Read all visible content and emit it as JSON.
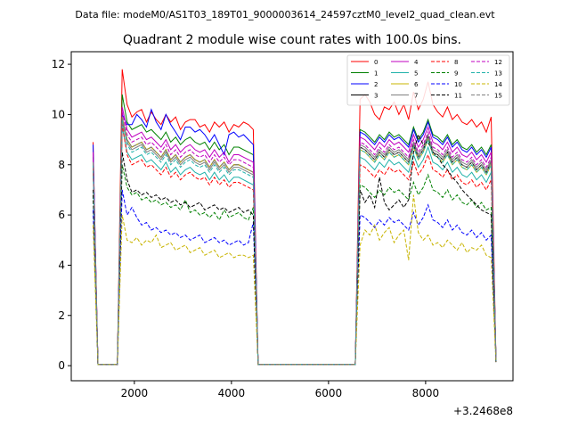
{
  "figure": {
    "suptitle": "Data file: modeM0/AS1T03_189T01_9000003614_24597cztM0_level2_quad_clean.evt"
  },
  "chart_data": {
    "type": "line",
    "title": "Quadrant 2 module wise count rates with 100.0s bins.",
    "xlabel": "",
    "ylabel": "",
    "x_offset_label": "+3.2468e8",
    "xlim": [
      700,
      9800
    ],
    "ylim": [
      -0.6,
      12.5
    ],
    "xticks": [
      2000,
      4000,
      6000,
      8000
    ],
    "yticks": [
      0,
      2,
      4,
      6,
      8,
      10,
      12
    ],
    "grid": false,
    "legend": {
      "position": "top-right",
      "ncol": 4
    },
    "x": [
      1150,
      1250,
      1550,
      1650,
      1750,
      1850,
      1950,
      2050,
      2150,
      2250,
      2350,
      2450,
      2550,
      2650,
      2750,
      2850,
      2950,
      3050,
      3150,
      3250,
      3350,
      3450,
      3550,
      3650,
      3750,
      3850,
      3950,
      4050,
      4150,
      4250,
      4350,
      4450,
      4550,
      6550,
      6650,
      6750,
      6850,
      6950,
      7050,
      7150,
      7250,
      7350,
      7450,
      7550,
      7650,
      7750,
      7850,
      7950,
      8050,
      8150,
      8250,
      8350,
      8450,
      8550,
      8650,
      8750,
      8850,
      8950,
      9050,
      9150,
      9250,
      9350,
      9450
    ],
    "series": [
      {
        "name": "0",
        "color": "#ff0000",
        "dash": "solid",
        "values": [
          8.9,
          0.05,
          0.05,
          0.05,
          11.8,
          10.4,
          9.9,
          10.1,
          10.2,
          9.7,
          10.1,
          9.8,
          9.6,
          10.0,
          9.7,
          9.9,
          9.4,
          9.7,
          9.8,
          9.8,
          9.5,
          9.6,
          9.3,
          9.7,
          9.5,
          9.7,
          9.3,
          9.6,
          9.5,
          9.7,
          9.6,
          9.4,
          0.05,
          0.05,
          10.6,
          10.8,
          10.5,
          10.0,
          9.8,
          10.3,
          10.2,
          10.5,
          10.0,
          10.4,
          9.8,
          10.9,
          10.2,
          10.6,
          11.3,
          10.4,
          10.1,
          9.9,
          10.3,
          9.8,
          10.0,
          9.7,
          9.6,
          9.8,
          9.5,
          9.7,
          9.3,
          9.9,
          0.25
        ]
      },
      {
        "name": "1",
        "color": "#008000",
        "dash": "solid",
        "values": [
          8.3,
          0.05,
          0.05,
          0.05,
          10.8,
          9.7,
          9.4,
          9.5,
          9.6,
          9.3,
          9.4,
          9.2,
          9.0,
          9.3,
          8.9,
          9.1,
          8.8,
          9.0,
          9.1,
          8.9,
          8.8,
          8.9,
          8.6,
          8.9,
          8.6,
          8.8,
          8.4,
          8.7,
          8.7,
          8.6,
          8.5,
          8.4,
          0.05,
          0.05,
          9.4,
          9.3,
          9.1,
          8.9,
          9.2,
          9.0,
          9.3,
          9.1,
          9.2,
          9.0,
          8.8,
          9.5,
          9.0,
          9.3,
          9.8,
          9.2,
          9.1,
          8.9,
          9.2,
          8.8,
          9.0,
          8.7,
          8.6,
          8.8,
          8.5,
          8.7,
          8.4,
          8.8,
          0.22
        ]
      },
      {
        "name": "2",
        "color": "#0000ff",
        "dash": "solid",
        "values": [
          8.8,
          0.05,
          0.05,
          0.05,
          10.0,
          9.6,
          9.6,
          10.0,
          9.8,
          9.5,
          10.2,
          9.7,
          9.4,
          10.0,
          9.6,
          9.3,
          9.0,
          9.5,
          9.5,
          9.3,
          9.4,
          9.2,
          8.9,
          9.2,
          8.8,
          8.4,
          9.2,
          9.3,
          9.1,
          9.2,
          9.0,
          8.8,
          0.05,
          0.05,
          9.3,
          9.2,
          9.0,
          8.8,
          9.1,
          8.9,
          9.2,
          9.0,
          9.1,
          8.9,
          8.7,
          9.4,
          8.9,
          9.2,
          9.7,
          9.1,
          9.0,
          8.8,
          9.1,
          8.7,
          8.9,
          8.6,
          8.5,
          8.7,
          8.4,
          8.6,
          8.3,
          8.7,
          0.22
        ]
      },
      {
        "name": "3",
        "color": "#000000",
        "dash": "solid",
        "values": [
          8.0,
          0.05,
          0.05,
          0.05,
          9.8,
          9.0,
          8.7,
          8.8,
          8.9,
          8.6,
          8.7,
          8.5,
          8.3,
          8.6,
          8.2,
          8.4,
          8.1,
          8.3,
          8.4,
          8.2,
          8.1,
          8.2,
          7.9,
          8.2,
          7.9,
          8.1,
          7.8,
          8.0,
          8.0,
          7.9,
          7.8,
          7.7,
          0.05,
          0.05,
          8.7,
          8.6,
          8.4,
          8.2,
          8.5,
          8.3,
          8.6,
          8.4,
          8.5,
          8.3,
          8.1,
          8.8,
          8.3,
          8.6,
          9.1,
          8.5,
          8.4,
          8.2,
          8.5,
          8.1,
          8.3,
          8.0,
          7.9,
          8.1,
          7.8,
          8.0,
          7.7,
          8.1,
          0.2
        ]
      },
      {
        "name": "4",
        "color": "#c000c0",
        "dash": "solid",
        "values": [
          8.5,
          0.05,
          0.05,
          0.05,
          10.3,
          9.4,
          9.1,
          9.2,
          9.3,
          9.0,
          9.1,
          8.9,
          8.7,
          9.0,
          8.6,
          8.8,
          8.5,
          8.7,
          8.8,
          8.6,
          8.5,
          8.6,
          8.3,
          8.6,
          8.3,
          8.5,
          8.1,
          8.4,
          8.4,
          8.3,
          8.2,
          8.1,
          0.05,
          0.05,
          9.1,
          9.0,
          8.8,
          8.6,
          8.9,
          8.7,
          9.0,
          8.8,
          8.9,
          8.7,
          8.5,
          9.2,
          8.7,
          9.0,
          9.5,
          8.9,
          8.8,
          8.6,
          8.9,
          8.5,
          8.7,
          8.4,
          8.3,
          8.5,
          8.2,
          8.4,
          8.1,
          8.5,
          0.21
        ]
      },
      {
        "name": "5",
        "color": "#20b2aa",
        "dash": "solid",
        "values": [
          7.8,
          0.05,
          0.05,
          0.05,
          9.5,
          8.5,
          8.2,
          8.3,
          8.4,
          8.1,
          8.2,
          8.0,
          7.8,
          8.1,
          7.7,
          7.9,
          7.6,
          7.8,
          7.9,
          7.7,
          7.6,
          7.7,
          7.4,
          7.7,
          7.4,
          7.6,
          7.3,
          7.5,
          7.5,
          7.4,
          7.3,
          7.2,
          0.05,
          0.05,
          8.3,
          8.2,
          8.0,
          7.8,
          8.1,
          7.9,
          8.2,
          8.0,
          8.1,
          7.9,
          7.7,
          8.4,
          7.9,
          8.2,
          8.7,
          8.1,
          8.0,
          7.8,
          8.1,
          7.7,
          7.9,
          7.6,
          7.5,
          7.7,
          7.4,
          7.6,
          7.3,
          7.7,
          0.19
        ]
      },
      {
        "name": "6",
        "color": "#c8b400",
        "dash": "solid",
        "values": [
          8.1,
          0.05,
          0.05,
          0.05,
          9.9,
          9.0,
          8.7,
          8.8,
          8.9,
          8.6,
          8.7,
          8.5,
          8.3,
          8.6,
          8.2,
          8.4,
          8.1,
          8.3,
          8.4,
          8.2,
          8.1,
          8.2,
          7.9,
          8.2,
          7.9,
          8.1,
          7.8,
          8.0,
          8.0,
          7.9,
          7.8,
          7.7,
          0.05,
          0.05,
          8.6,
          8.5,
          8.3,
          8.1,
          8.4,
          8.2,
          8.5,
          8.3,
          8.4,
          8.2,
          8.0,
          8.7,
          8.2,
          8.5,
          9.0,
          8.4,
          8.3,
          8.1,
          8.4,
          8.0,
          8.2,
          7.9,
          7.8,
          8.0,
          7.7,
          7.9,
          7.6,
          8.0,
          0.2
        ]
      },
      {
        "name": "7",
        "color": "#808080",
        "dash": "solid",
        "values": [
          8.2,
          0.05,
          0.05,
          0.05,
          9.7,
          8.9,
          8.6,
          8.7,
          8.8,
          8.5,
          8.6,
          8.4,
          8.2,
          8.5,
          8.1,
          8.3,
          8.0,
          8.2,
          8.3,
          8.1,
          8.0,
          8.1,
          7.8,
          8.1,
          7.8,
          8.0,
          7.7,
          7.9,
          7.9,
          7.8,
          7.7,
          7.6,
          0.05,
          0.05,
          8.8,
          8.7,
          8.5,
          8.3,
          8.6,
          8.4,
          8.7,
          8.5,
          8.6,
          8.4,
          8.2,
          8.9,
          8.4,
          8.7,
          9.2,
          8.6,
          8.5,
          8.3,
          8.6,
          8.2,
          8.4,
          8.1,
          8.0,
          8.2,
          7.9,
          8.1,
          7.8,
          8.2,
          0.2
        ]
      },
      {
        "name": "8",
        "color": "#ff0000",
        "dash": "dashed",
        "values": [
          7.9,
          0.05,
          0.05,
          0.05,
          9.6,
          8.4,
          8.0,
          8.1,
          8.2,
          7.9,
          8.0,
          7.8,
          7.6,
          7.9,
          7.5,
          7.7,
          7.4,
          7.6,
          7.7,
          7.5,
          7.4,
          7.5,
          7.2,
          7.5,
          7.2,
          7.4,
          7.1,
          7.3,
          7.3,
          7.2,
          7.1,
          7.0,
          0.05,
          0.05,
          8.0,
          7.9,
          7.7,
          7.5,
          7.8,
          7.6,
          7.9,
          7.7,
          7.8,
          7.6,
          7.4,
          8.1,
          7.6,
          7.9,
          8.4,
          7.8,
          7.7,
          7.5,
          7.8,
          7.4,
          7.6,
          7.3,
          7.2,
          7.4,
          7.1,
          7.3,
          7.0,
          7.4,
          0.18
        ]
      },
      {
        "name": "9",
        "color": "#008000",
        "dash": "dashed",
        "values": [
          6.8,
          0.05,
          0.05,
          0.05,
          8.0,
          7.1,
          6.8,
          6.9,
          6.6,
          6.7,
          6.5,
          6.6,
          6.4,
          6.5,
          6.3,
          6.4,
          6.2,
          6.6,
          6.1,
          6.2,
          6.0,
          6.1,
          5.9,
          6.1,
          5.8,
          6.2,
          5.9,
          6.0,
          6.1,
          5.9,
          5.8,
          6.3,
          0.05,
          0.05,
          7.2,
          7.1,
          6.9,
          6.7,
          7.0,
          6.8,
          7.1,
          6.9,
          7.0,
          6.8,
          6.6,
          7.3,
          6.8,
          7.1,
          7.6,
          7.0,
          6.9,
          6.7,
          7.0,
          6.6,
          6.8,
          6.5,
          6.4,
          6.6,
          6.3,
          6.5,
          6.2,
          6.3,
          0.16
        ]
      },
      {
        "name": "10",
        "color": "#0000ff",
        "dash": "dashed",
        "values": [
          6.2,
          0.05,
          0.05,
          0.05,
          7.0,
          6.0,
          6.3,
          5.9,
          5.6,
          5.7,
          5.4,
          5.5,
          5.3,
          5.4,
          5.2,
          5.3,
          5.1,
          5.2,
          5.0,
          5.1,
          5.2,
          4.9,
          5.0,
          5.1,
          4.9,
          5.0,
          4.8,
          4.9,
          5.0,
          4.8,
          4.9,
          5.7,
          0.05,
          0.05,
          6.0,
          5.9,
          5.7,
          5.5,
          5.8,
          5.6,
          5.9,
          5.7,
          5.8,
          5.6,
          5.4,
          6.1,
          5.6,
          5.9,
          6.4,
          5.8,
          5.7,
          5.5,
          5.8,
          5.4,
          5.6,
          5.3,
          5.2,
          5.4,
          5.1,
          5.3,
          5.0,
          5.2,
          0.14
        ]
      },
      {
        "name": "11",
        "color": "#000000",
        "dash": "dashed",
        "values": [
          7.0,
          0.05,
          0.05,
          0.05,
          8.5,
          7.4,
          6.9,
          7.0,
          6.8,
          6.9,
          6.7,
          6.8,
          6.6,
          6.7,
          6.5,
          6.6,
          6.4,
          6.5,
          6.3,
          6.4,
          6.5,
          6.2,
          6.3,
          6.4,
          6.2,
          6.3,
          6.1,
          6.2,
          6.3,
          6.1,
          6.2,
          6.0,
          0.05,
          0.05,
          7.0,
          6.5,
          6.8,
          6.3,
          7.5,
          6.5,
          6.2,
          6.4,
          6.6,
          6.3,
          6.6,
          8.5,
          9.2,
          8.8,
          8.9,
          8.5,
          8.3,
          8.0,
          7.8,
          7.5,
          7.3,
          7.0,
          6.8,
          6.6,
          6.4,
          6.2,
          6.1,
          6.0,
          0.15
        ]
      },
      {
        "name": "12",
        "color": "#c000c0",
        "dash": "dashed",
        "values": [
          8.2,
          0.05,
          0.05,
          0.05,
          10.1,
          9.2,
          8.9,
          9.0,
          9.1,
          8.8,
          8.9,
          8.7,
          8.5,
          8.8,
          8.4,
          8.6,
          8.3,
          8.5,
          8.6,
          8.4,
          8.3,
          8.4,
          8.1,
          8.4,
          8.1,
          8.3,
          8.0,
          8.2,
          8.2,
          8.1,
          8.0,
          7.9,
          0.05,
          0.05,
          8.9,
          8.8,
          8.6,
          8.4,
          8.7,
          8.5,
          8.8,
          8.6,
          8.7,
          8.5,
          8.3,
          9.0,
          8.5,
          8.8,
          9.3,
          8.7,
          8.6,
          8.4,
          8.7,
          8.3,
          8.5,
          8.2,
          8.1,
          8.3,
          8.0,
          8.2,
          7.9,
          8.3,
          0.2
        ]
      },
      {
        "name": "13",
        "color": "#20b2aa",
        "dash": "dashed",
        "values": [
          8.0,
          0.05,
          0.05,
          0.05,
          9.8,
          8.8,
          8.5,
          8.6,
          8.7,
          8.4,
          8.5,
          8.3,
          8.1,
          8.4,
          8.0,
          8.2,
          7.9,
          8.1,
          8.2,
          8.0,
          7.9,
          8.0,
          7.7,
          8.0,
          7.7,
          7.9,
          7.6,
          7.8,
          7.8,
          7.7,
          7.6,
          7.5,
          0.05,
          0.05,
          8.6,
          8.5,
          8.3,
          8.1,
          8.4,
          8.2,
          8.5,
          8.3,
          8.4,
          8.2,
          8.0,
          8.7,
          8.2,
          8.5,
          9.0,
          8.4,
          8.3,
          8.1,
          8.4,
          8.0,
          8.2,
          7.9,
          7.8,
          8.0,
          7.7,
          7.9,
          7.6,
          8.0,
          0.19
        ]
      },
      {
        "name": "14",
        "color": "#c8b400",
        "dash": "dashed",
        "values": [
          5.6,
          0.05,
          0.05,
          0.05,
          6.0,
          5.0,
          4.9,
          5.1,
          4.8,
          5.0,
          4.9,
          5.2,
          4.7,
          4.8,
          4.9,
          4.6,
          4.7,
          4.8,
          4.5,
          4.6,
          4.7,
          4.4,
          4.5,
          4.6,
          4.3,
          4.4,
          4.5,
          4.3,
          4.4,
          4.4,
          4.3,
          4.4,
          0.05,
          0.05,
          4.8,
          5.4,
          5.2,
          5.6,
          5.0,
          5.3,
          5.5,
          4.9,
          5.2,
          5.4,
          4.2,
          6.8,
          5.3,
          5.0,
          5.2,
          4.8,
          4.9,
          4.7,
          5.0,
          4.8,
          4.6,
          4.9,
          4.5,
          4.7,
          4.6,
          4.8,
          4.4,
          4.3,
          0.14
        ]
      },
      {
        "name": "15",
        "color": "#808080",
        "dash": "dashed",
        "values": [
          8.1,
          0.05,
          0.05,
          0.05,
          9.9,
          9.0,
          8.7,
          8.8,
          8.9,
          8.6,
          8.7,
          8.5,
          8.3,
          8.6,
          8.2,
          8.4,
          8.1,
          8.3,
          8.4,
          8.2,
          8.1,
          8.2,
          7.9,
          8.2,
          7.9,
          8.1,
          7.8,
          8.0,
          8.0,
          7.9,
          7.8,
          7.7,
          0.05,
          0.05,
          8.7,
          8.6,
          8.4,
          8.2,
          8.5,
          8.3,
          8.6,
          8.4,
          8.5,
          8.3,
          8.1,
          8.8,
          8.3,
          8.6,
          9.1,
          8.5,
          8.4,
          8.2,
          8.5,
          8.1,
          8.3,
          8.0,
          7.9,
          8.1,
          7.8,
          8.0,
          7.7,
          8.1,
          0.2
        ]
      }
    ]
  }
}
